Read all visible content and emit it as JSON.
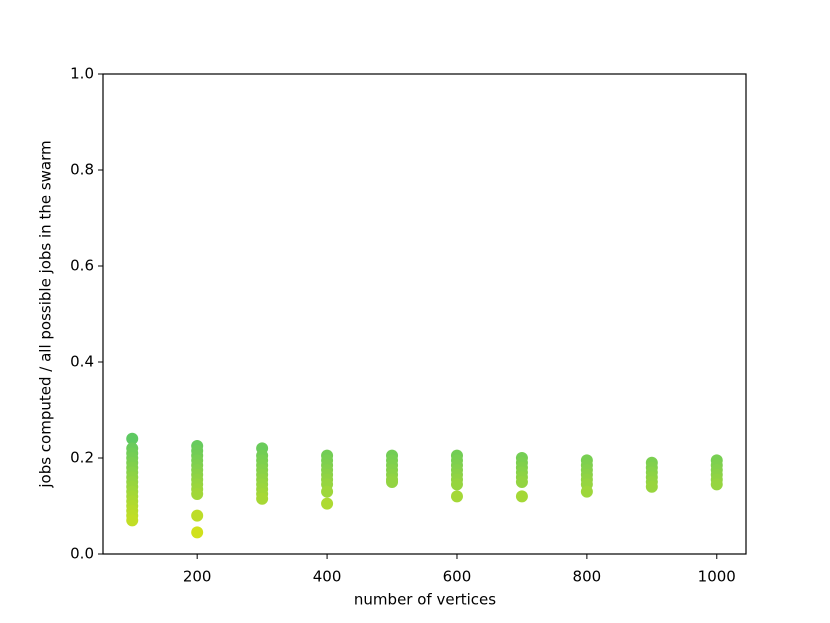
{
  "chart_data": {
    "type": "scatter",
    "xlabel": "number of vertices",
    "ylabel": "jobs computed / all possible jobs in the swarm",
    "xlim": [
      55,
      1045
    ],
    "ylim": [
      0,
      1
    ],
    "xticks": [
      200,
      400,
      600,
      800,
      1000
    ],
    "yticks": [
      {
        "value": 0,
        "label": "0.0"
      },
      0.2,
      0.4,
      0.6,
      0.8,
      {
        "value": 1,
        "label": "1.0"
      }
    ],
    "colors": [
      "#d0e11c",
      "#5ec962"
    ],
    "x": [
      100,
      100,
      100,
      100,
      100,
      100,
      100,
      100,
      100,
      100,
      100,
      100,
      100,
      100,
      100,
      100,
      100,
      200,
      200,
      200,
      200,
      200,
      200,
      200,
      200,
      200,
      200,
      200,
      200,
      200,
      300,
      300,
      300,
      300,
      300,
      300,
      300,
      300,
      300,
      300,
      300,
      400,
      400,
      400,
      400,
      400,
      400,
      400,
      400,
      400,
      500,
      500,
      500,
      500,
      500,
      500,
      500,
      600,
      600,
      600,
      600,
      600,
      600,
      600,
      600,
      700,
      700,
      700,
      700,
      700,
      700,
      700,
      800,
      800,
      800,
      800,
      800,
      800,
      800,
      900,
      900,
      900,
      900,
      900,
      900,
      1000,
      1000,
      1000,
      1000,
      1000,
      1000
    ],
    "y": [
      0.24,
      0.22,
      0.21,
      0.2,
      0.19,
      0.18,
      0.17,
      0.16,
      0.15,
      0.14,
      0.13,
      0.12,
      0.11,
      0.1,
      0.09,
      0.08,
      0.07,
      0.225,
      0.215,
      0.205,
      0.195,
      0.185,
      0.175,
      0.165,
      0.155,
      0.145,
      0.135,
      0.125,
      0.08,
      0.045,
      0.22,
      0.205,
      0.195,
      0.185,
      0.175,
      0.165,
      0.155,
      0.145,
      0.135,
      0.125,
      0.115,
      0.205,
      0.195,
      0.185,
      0.175,
      0.165,
      0.155,
      0.145,
      0.13,
      0.105,
      0.205,
      0.195,
      0.185,
      0.175,
      0.165,
      0.155,
      0.15,
      0.205,
      0.195,
      0.185,
      0.175,
      0.165,
      0.155,
      0.145,
      0.12,
      0.2,
      0.19,
      0.18,
      0.17,
      0.16,
      0.15,
      0.12,
      0.195,
      0.185,
      0.175,
      0.165,
      0.155,
      0.145,
      0.13,
      0.19,
      0.18,
      0.17,
      0.16,
      0.15,
      0.14,
      0.195,
      0.185,
      0.175,
      0.165,
      0.155,
      0.145
    ]
  }
}
